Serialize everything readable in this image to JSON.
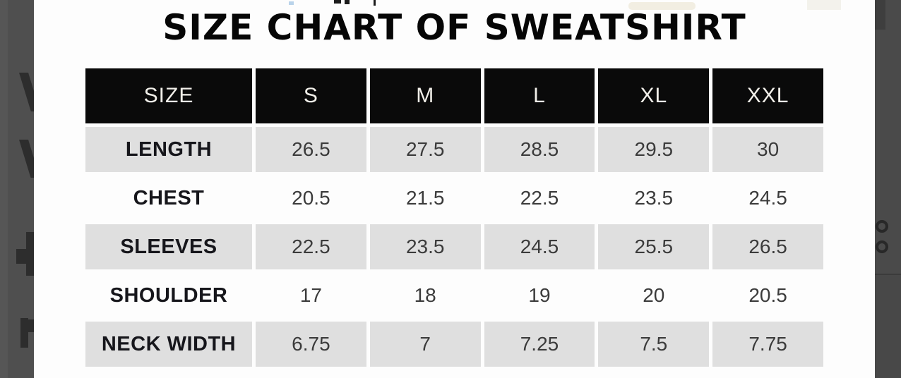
{
  "image": {
    "title": "SIZE CHART OF SWEATSHIRT"
  },
  "size_chart": {
    "columns": [
      "SIZE",
      "S",
      "M",
      "L",
      "XL",
      "XXL"
    ],
    "rows": [
      {
        "label": "LENGTH",
        "values": [
          "26.5",
          "27.5",
          "28.5",
          "29.5",
          "30"
        ]
      },
      {
        "label": "CHEST",
        "values": [
          "20.5",
          "21.5",
          "22.5",
          "23.5",
          "24.5"
        ]
      },
      {
        "label": "SLEEVES",
        "values": [
          "22.5",
          "23.5",
          "24.5",
          "25.5",
          "26.5"
        ]
      },
      {
        "label": "SHOULDER",
        "values": [
          "17",
          "18",
          "19",
          "20",
          "20.5"
        ]
      },
      {
        "label": "NECK WIDTH",
        "values": [
          "6.75",
          "7",
          "7.25",
          "7.5",
          "7.75"
        ]
      }
    ]
  },
  "colors": {
    "page_background": "#4e4e4e",
    "panel_background": "#fdfdfd",
    "table_header_background": "#0a0a0a",
    "table_header_text": "#f1efe9",
    "table_alt_row_background": "#dfdfdf",
    "row_label_text": "#16161b",
    "value_text": "#3b3b3b"
  }
}
